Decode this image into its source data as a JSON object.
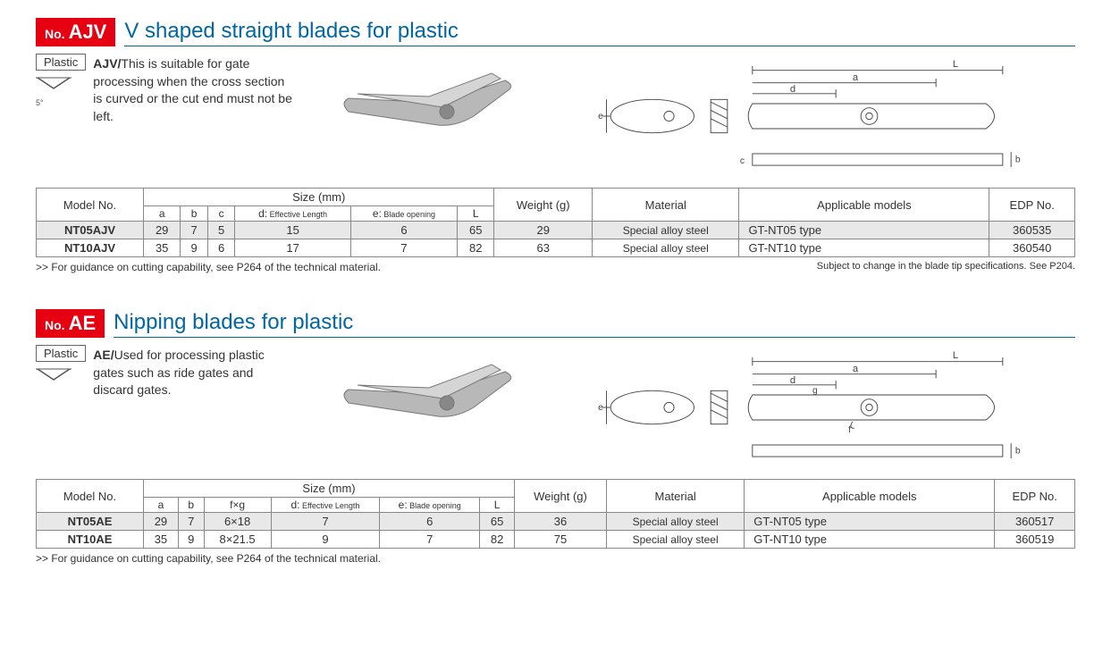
{
  "sections": [
    {
      "badge_no": "No.",
      "badge_code": "AJV",
      "title": "V shaped straight blades for plastic",
      "plastic_label": "Plastic",
      "angle_note": "5°",
      "desc_bold": "AJV/",
      "desc_text": "This is suitable for gate processing when the cross section is curved or the cut end must not be left.",
      "diagram_labels": {
        "L": "L",
        "a": "a",
        "d": "d",
        "e": "e",
        "c": "c",
        "b": "b"
      },
      "table": {
        "headers": {
          "model": "Model No.",
          "size": "Size (mm)",
          "weight": "Weight (g)",
          "material": "Material",
          "applicable": "Applicable models",
          "edp": "EDP No."
        },
        "sub_headers": [
          "a",
          "b",
          "c",
          "d: Effective Length",
          "e: Blade opening",
          "L"
        ],
        "rows": [
          {
            "model": "NT05AJV",
            "a": "29",
            "b": "7",
            "c": "5",
            "d": "15",
            "e": "6",
            "L": "65",
            "weight": "29",
            "material": "Special alloy steel",
            "applicable": "GT-NT05 type",
            "edp": "360535"
          },
          {
            "model": "NT10AJV",
            "a": "35",
            "b": "9",
            "c": "6",
            "d": "17",
            "e": "7",
            "L": "82",
            "weight": "63",
            "material": "Special alloy steel",
            "applicable": "GT-NT10 type",
            "edp": "360540"
          }
        ]
      },
      "note_left": ">> For guidance on cutting capability, see P264 of the technical material.",
      "note_right": "Subject to change in the blade tip specifications. See P204."
    },
    {
      "badge_no": "No.",
      "badge_code": "AE",
      "title": "Nipping blades for plastic",
      "plastic_label": "Plastic",
      "angle_note": "",
      "desc_bold": "AE/",
      "desc_text": "Used for processing plastic gates such as ride gates and discard gates.",
      "diagram_labels": {
        "L": "L",
        "a": "a",
        "d": "d",
        "g": "g",
        "e": "e",
        "f": "f",
        "b": "b"
      },
      "table": {
        "headers": {
          "model": "Model No.",
          "size": "Size (mm)",
          "weight": "Weight (g)",
          "material": "Material",
          "applicable": "Applicable models",
          "edp": "EDP No."
        },
        "sub_headers": [
          "a",
          "b",
          "f×g",
          "d: Effective Length",
          "e: Blade opening",
          "L"
        ],
        "rows": [
          {
            "model": "NT05AE",
            "a": "29",
            "b": "7",
            "c": "6×18",
            "d": "7",
            "e": "6",
            "L": "65",
            "weight": "36",
            "material": "Special alloy steel",
            "applicable": "GT-NT05 type",
            "edp": "360517"
          },
          {
            "model": "NT10AE",
            "a": "35",
            "b": "9",
            "c": "8×21.5",
            "d": "9",
            "e": "7",
            "L": "82",
            "weight": "75",
            "material": "Special alloy steel",
            "applicable": "GT-NT10 type",
            "edp": "360519"
          }
        ]
      },
      "note_left": ">> For guidance on cutting capability, see P264 of the technical material.",
      "note_right": ""
    }
  ]
}
